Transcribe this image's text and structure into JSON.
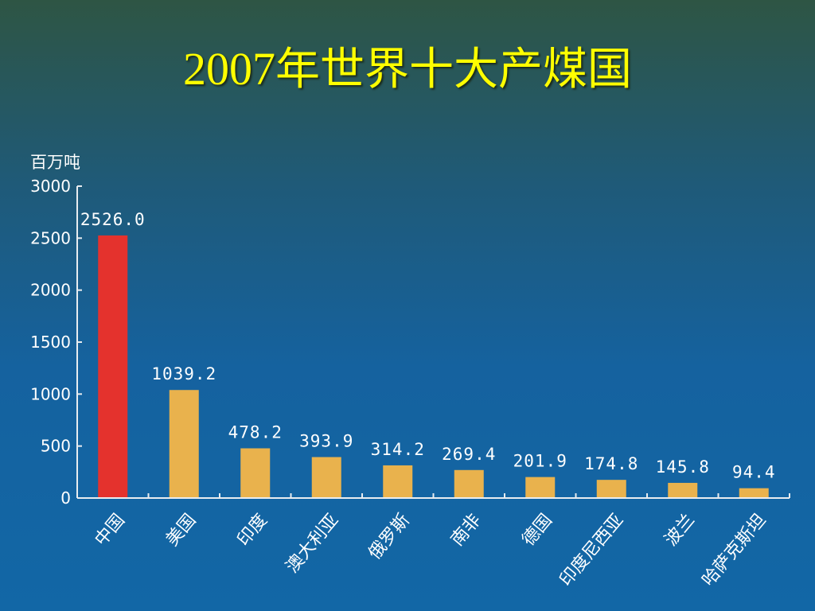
{
  "title": {
    "year": "2007",
    "text": "年世界十大产煤国"
  },
  "chart_data": {
    "type": "bar",
    "title": "2007年世界十大产煤国",
    "ylabel": "百万吨",
    "ylim": [
      0,
      3000
    ],
    "yticks": [
      0,
      500,
      1000,
      1500,
      2000,
      2500,
      3000
    ],
    "categories": [
      "中国",
      "美国",
      "印度",
      "澳大利亚",
      "俄罗斯",
      "南非",
      "德国",
      "印度尼西亚",
      "波兰",
      "哈萨克斯坦"
    ],
    "values": [
      2526.0,
      1039.2,
      478.2,
      393.9,
      314.2,
      269.4,
      201.9,
      174.8,
      145.8,
      94.4
    ],
    "value_labels": [
      "2526.0",
      "1039.2",
      "478.2",
      "393.9",
      "314.2",
      "269.4",
      "201.9",
      "174.8",
      "145.8",
      "94.4"
    ],
    "highlight_index": 0,
    "colors": {
      "highlight": "#e4322d",
      "bar": "#e9b24d",
      "axis": "#e8ecf0",
      "text": "#ffffff"
    },
    "grid": false,
    "legend": "none"
  }
}
